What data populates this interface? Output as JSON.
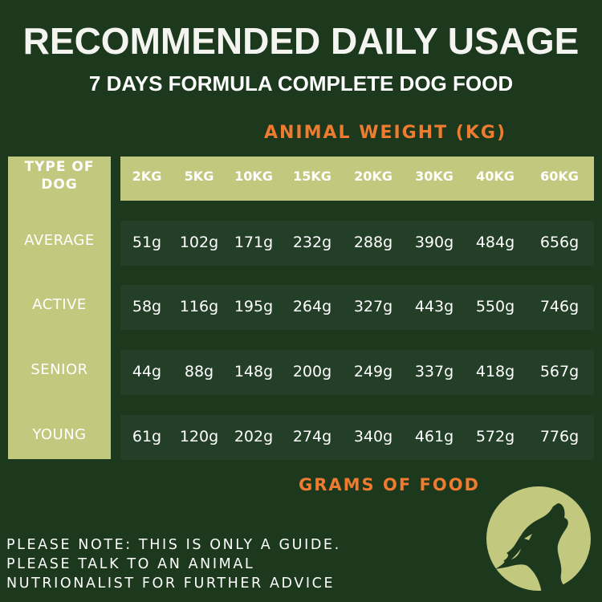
{
  "title": "RECOMMENDED DAILY USAGE",
  "subtitle": "7 DAYS FORMULA COMPLETE DOG FOOD",
  "column_group_label": "ANIMAL WEIGHT (KG)",
  "row_header": "TYPE OF DOG",
  "columns": [
    "2KG",
    "5KG",
    "10KG",
    "15KG",
    "20KG",
    "30KG",
    "40KG",
    "60KG"
  ],
  "rows": [
    {
      "label": "AVERAGE",
      "values": [
        "51g",
        "102g",
        "171g",
        "232g",
        "288g",
        "390g",
        "484g",
        "656g"
      ]
    },
    {
      "label": "ACTIVE",
      "values": [
        "58g",
        "116g",
        "195g",
        "264g",
        "327g",
        "443g",
        "550g",
        "746g"
      ]
    },
    {
      "label": "SENIOR",
      "values": [
        "44g",
        "88g",
        "148g",
        "200g",
        "249g",
        "337g",
        "418g",
        "567g"
      ]
    },
    {
      "label": "YOUNG",
      "values": [
        "61g",
        "120g",
        "202g",
        "274g",
        "340g",
        "461g",
        "572g",
        "776g"
      ]
    }
  ],
  "value_unit_label": "GRAMS OF FOOD",
  "note": [
    "PLEASE NOTE: THIS IS ONLY A GUIDE.",
    "PLEASE TALK TO AN ANIMAL",
    "NUTRIONALIST FOR FURTHER ADVICE"
  ],
  "logo_icon": "howling-wolf-moon-icon",
  "colors": {
    "background": "#1c381d",
    "accent": "#c2c87e",
    "row": "#233f27",
    "highlight": "#ee7b2f"
  }
}
